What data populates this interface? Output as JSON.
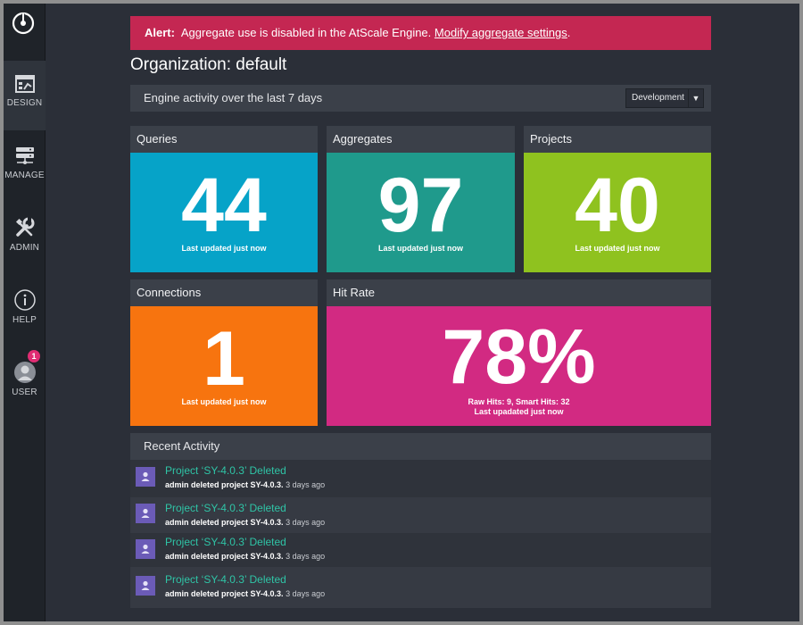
{
  "sidebar": {
    "items": [
      {
        "label": "DESIGN",
        "icon": "design-icon",
        "active": true
      },
      {
        "label": "MANAGE",
        "icon": "server-icon"
      },
      {
        "label": "ADMIN",
        "icon": "wrench-icon"
      },
      {
        "label": "HELP",
        "icon": "info-icon"
      },
      {
        "label": "USER",
        "icon": "user-icon",
        "badge": "1"
      }
    ]
  },
  "alert": {
    "prefix": "Alert:",
    "message": "Aggregate use is disabled in the AtScale Engine.",
    "link": "Modify aggregate settings",
    "suffix": "."
  },
  "page_title": "Organization: default",
  "activity_header": {
    "title": "Engine activity over the last 7 days",
    "environment": "Development"
  },
  "cards": {
    "queries": {
      "title": "Queries",
      "value": "44",
      "note": "Last updated just now",
      "color": "#06a3c8"
    },
    "aggregates": {
      "title": "Aggregates",
      "value": "97",
      "note": "Last updated just now",
      "color": "#1f9a8c"
    },
    "projects": {
      "title": "Projects",
      "value": "40",
      "note": "Last updated just now",
      "color": "#8fc21f"
    },
    "connections": {
      "title": "Connections",
      "value": "1",
      "note": "Last updated just now",
      "color": "#f7740f"
    },
    "hit_rate": {
      "title": "Hit Rate",
      "value": "78%",
      "detail": "Raw Hits: 9, Smart Hits: 32",
      "note": "Last upadated just now",
      "color": "#d22a82"
    }
  },
  "recent": {
    "title": "Recent Activity",
    "items": [
      {
        "title": "Project ‘SY-4.0.3’ Deleted",
        "desc": "admin deleted project SY-4.0.3.",
        "ago": "3 days ago"
      },
      {
        "title": "Project ‘SY-4.0.3’ Deleted",
        "desc": "admin deleted project SY-4.0.3.",
        "ago": "3 days ago"
      },
      {
        "title": "Project ‘SY-4.0.3’ Deleted",
        "desc": "admin deleted project SY-4.0.3.",
        "ago": "3 days ago"
      },
      {
        "title": "Project ‘SY-4.0.3’ Deleted",
        "desc": "admin deleted project SY-4.0.3.",
        "ago": "3 days ago"
      }
    ]
  }
}
